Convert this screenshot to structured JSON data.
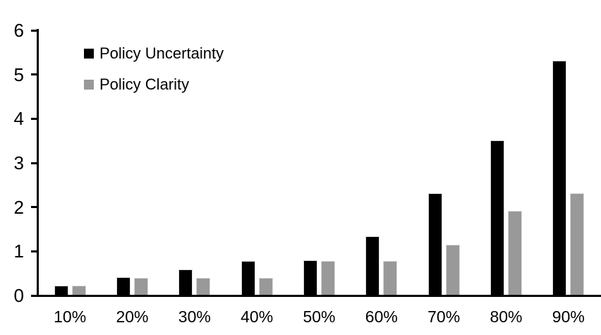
{
  "chart_data": {
    "type": "bar",
    "title": "",
    "xlabel": "",
    "ylabel": "",
    "categories": [
      "10%",
      "20%",
      "30%",
      "40%",
      "50%",
      "60%",
      "70%",
      "80%",
      "90%"
    ],
    "series": [
      {
        "name": "Policy Uncertainty",
        "color": "#000000",
        "values": [
          0.2,
          0.4,
          0.57,
          0.76,
          0.78,
          1.33,
          2.3,
          3.5,
          5.3
        ]
      },
      {
        "name": "Policy Clarity",
        "color": "#999999",
        "values": [
          0.2,
          0.38,
          0.38,
          0.38,
          0.77,
          0.76,
          1.13,
          1.9,
          2.3
        ]
      }
    ],
    "ylim": [
      0,
      6
    ],
    "yticks": [
      "0",
      "1",
      "2",
      "3",
      "4",
      "5",
      "6"
    ],
    "grid": false,
    "legend_position": "top-left",
    "axis_color": "#000000",
    "bar_border_color": "#d9d9d9",
    "background_color": "#ffffff"
  }
}
